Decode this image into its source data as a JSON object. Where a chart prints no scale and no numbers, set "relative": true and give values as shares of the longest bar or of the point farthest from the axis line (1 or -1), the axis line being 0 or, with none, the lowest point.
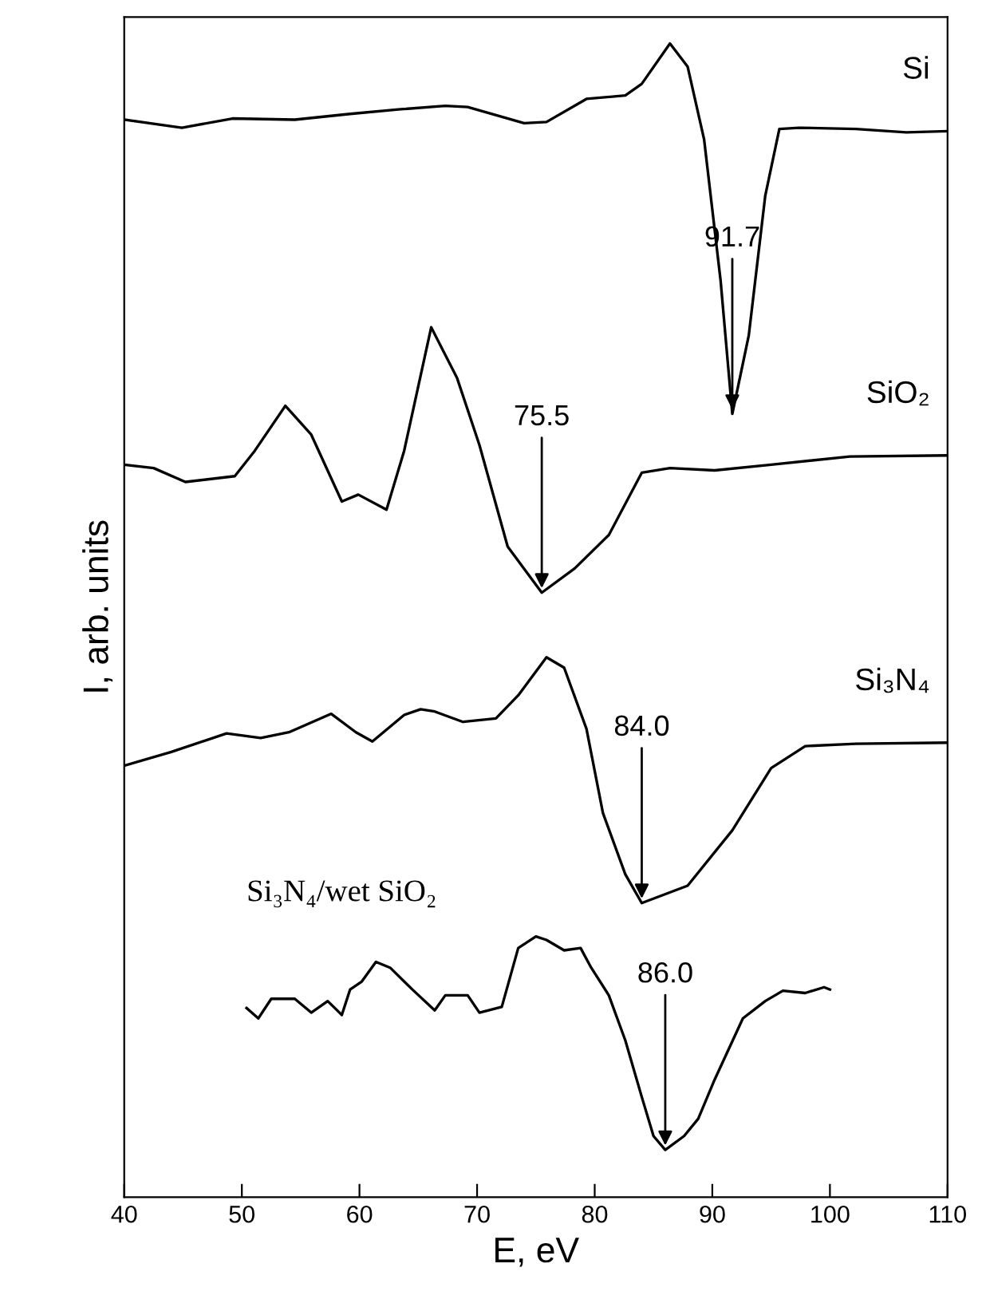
{
  "chart_data": {
    "type": "line",
    "xlabel": "E, eV",
    "ylabel": "I, arb. units",
    "relative": true,
    "xlim": [
      40,
      110
    ],
    "xticks": [
      40,
      50,
      60,
      70,
      80,
      90,
      100,
      110
    ],
    "grid": false,
    "legend": false,
    "marker": "none",
    "line_style": "solid",
    "series": [
      {
        "name": "Si",
        "color": "#000000",
        "x": [
          40.0,
          44.9,
          49.2,
          54.5,
          59.2,
          63.5,
          67.3,
          69.2,
          74.0,
          75.9,
          79.3,
          82.6,
          84.0,
          86.4,
          87.9,
          89.3,
          90.7,
          91.7,
          93.1,
          94.5,
          95.7,
          97.4,
          102.2,
          106.5,
          110
        ],
        "values": [
          0.934,
          0.927,
          0.935,
          0.934,
          0.939,
          0.943,
          0.946,
          0.945,
          0.931,
          0.932,
          0.952,
          0.955,
          0.965,
          1.0,
          0.98,
          0.917,
          0.795,
          0.679,
          0.747,
          0.868,
          0.926,
          0.927,
          0.926,
          0.923,
          0.924
        ]
      },
      {
        "name": "SiO₂",
        "color": "#000000",
        "x": [
          40,
          42.5,
          45.2,
          49.4,
          51.1,
          53.7,
          55.9,
          58.5,
          59.9,
          62.3,
          63.8,
          66.1,
          68.3,
          70.2,
          72.6,
          75.5,
          78.3,
          81.2,
          84.0,
          86.4,
          90.2,
          95.0,
          101.7,
          110
        ],
        "values": [
          0.635,
          0.632,
          0.62,
          0.625,
          0.647,
          0.686,
          0.661,
          0.603,
          0.609,
          0.596,
          0.647,
          0.754,
          0.71,
          0.652,
          0.564,
          0.524,
          0.545,
          0.574,
          0.628,
          0.632,
          0.63,
          0.635,
          0.642,
          0.643
        ]
      },
      {
        "name": "Si₃N₄",
        "color": "#000000",
        "x": [
          40,
          44.0,
          48.7,
          51.6,
          54.0,
          57.6,
          59.7,
          61.1,
          63.8,
          65.2,
          66.4,
          68.8,
          71.6,
          73.5,
          75.9,
          77.4,
          79.3,
          80.7,
          82.6,
          84.0,
          87.9,
          91.7,
          95.0,
          97.9,
          102.2,
          110
        ],
        "values": [
          0.374,
          0.386,
          0.402,
          0.398,
          0.403,
          0.419,
          0.403,
          0.395,
          0.418,
          0.423,
          0.421,
          0.412,
          0.415,
          0.435,
          0.468,
          0.459,
          0.406,
          0.333,
          0.28,
          0.255,
          0.27,
          0.318,
          0.372,
          0.391,
          0.393,
          0.394
        ]
      },
      {
        "name": "Si₃N₄/wet SiO₂",
        "color": "#000000",
        "x": [
          50.4,
          51.4,
          52.5,
          54.5,
          55.9,
          57.3,
          58.5,
          59.2,
          60.2,
          61.4,
          62.6,
          64.5,
          66.4,
          67.3,
          69.2,
          70.2,
          72.1,
          73.5,
          75.0,
          75.9,
          77.4,
          78.8,
          79.7,
          81.2,
          82.6,
          84.0,
          85.0,
          86.0,
          87.6,
          88.8,
          90.2,
          92.6,
          94.5,
          96.0,
          97.9,
          99.5,
          100
        ],
        "values": [
          0.164,
          0.155,
          0.172,
          0.172,
          0.16,
          0.17,
          0.158,
          0.18,
          0.187,
          0.204,
          0.199,
          0.18,
          0.162,
          0.175,
          0.175,
          0.16,
          0.165,
          0.216,
          0.226,
          0.223,
          0.214,
          0.216,
          0.199,
          0.175,
          0.136,
          0.087,
          0.053,
          0.041,
          0.053,
          0.068,
          0.102,
          0.155,
          0.17,
          0.179,
          0.177,
          0.182,
          0.18
        ]
      }
    ],
    "annotations": [
      {
        "text": "91.7",
        "x": 91.7,
        "y": 0.679
      },
      {
        "text": "75.5",
        "x": 75.5,
        "y": 0.524
      },
      {
        "text": "84.0",
        "x": 84.0,
        "y": 0.255
      },
      {
        "text": "86.0",
        "x": 86.0,
        "y": 0.041
      }
    ]
  }
}
